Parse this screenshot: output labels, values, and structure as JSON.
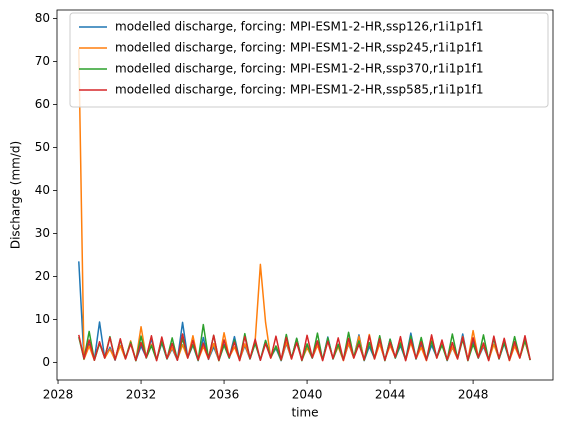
{
  "chart_data": {
    "type": "line",
    "xlabel": "time",
    "ylabel": "Discharge (mm/d)",
    "xlim": [
      2027.95,
      2051.85
    ],
    "xticks": [
      2028,
      2032,
      2036,
      2040,
      2044,
      2048
    ],
    "ylim": [
      -4.1,
      82
    ],
    "yticks": [
      0,
      10,
      20,
      30,
      40,
      50,
      60,
      70,
      80
    ],
    "legend": "upper right",
    "x": [
      2029,
      2029.25,
      2029.5,
      2029.75,
      2030,
      2030.25,
      2030.5,
      2030.75,
      2031,
      2031.25,
      2031.5,
      2031.75,
      2032,
      2032.25,
      2032.5,
      2032.75,
      2033,
      2033.25,
      2033.5,
      2033.75,
      2034,
      2034.25,
      2034.5,
      2034.75,
      2035,
      2035.25,
      2035.5,
      2035.75,
      2036,
      2036.25,
      2036.5,
      2036.75,
      2037,
      2037.25,
      2037.5,
      2037.75,
      2038,
      2038.25,
      2038.5,
      2038.75,
      2039,
      2039.25,
      2039.5,
      2039.75,
      2040,
      2040.25,
      2040.5,
      2040.75,
      2041,
      2041.25,
      2041.5,
      2041.75,
      2042,
      2042.25,
      2042.5,
      2042.75,
      2043,
      2043.25,
      2043.5,
      2043.75,
      2044,
      2044.25,
      2044.5,
      2044.75,
      2045,
      2045.25,
      2045.5,
      2045.75,
      2046,
      2046.25,
      2046.5,
      2046.75,
      2047,
      2047.25,
      2047.5,
      2047.75,
      2048,
      2048.25,
      2048.5,
      2048.75,
      2049,
      2049.25,
      2049.5,
      2049.75,
      2050,
      2050.25,
      2050.5,
      2050.75
    ],
    "series": [
      {
        "name": "modelled discharge, forcing: MPI-ESM1-2-HR,ssp126,r1i1p1f1",
        "color": "#1f77b4",
        "values": [
          23.5,
          0.8,
          4.2,
          0.6,
          9.4,
          1.0,
          3.5,
          0.5,
          5.2,
          0.9,
          4.8,
          0.4,
          3.8,
          1.2,
          5.5,
          0.6,
          4.5,
          0.8,
          3.2,
          0.5,
          9.3,
          1.1,
          4.0,
          0.4,
          5.8,
          0.7,
          3.6,
          0.5,
          4.2,
          1.0,
          6.0,
          0.6,
          3.9,
          0.8,
          4.5,
          0.5,
          5.1,
          1.2,
          3.3,
          0.4,
          4.4,
          0.9,
          5.6,
          0.5,
          3.6,
          1.0,
          4.1,
          0.6,
          5.9,
          0.8,
          3.8,
          0.5,
          4.3,
          1.1,
          6.4,
          0.4,
          3.7,
          0.9,
          4.6,
          0.5,
          5.4,
          1.0,
          3.9,
          0.6,
          6.8,
          0.8,
          4.2,
          0.5,
          4.0,
          1.2,
          5.0,
          0.4,
          3.5,
          0.9,
          6.6,
          0.5,
          4.8,
          1.0,
          3.7,
          0.6,
          5.5,
          0.8,
          4.4,
          0.5,
          3.9,
          1.1,
          5.2,
          0.6
        ]
      },
      {
        "name": "modelled discharge, forcing: MPI-ESM1-2-HR,ssp245,r1i1p1f1",
        "color": "#ff7f0e",
        "values": [
          73.0,
          0.7,
          3.8,
          0.5,
          4.6,
          1.0,
          3.1,
          0.6,
          3.9,
          0.8,
          5.0,
          0.4,
          8.3,
          1.1,
          4.2,
          0.5,
          5.6,
          0.9,
          3.5,
          0.6,
          4.1,
          1.0,
          6.2,
          0.5,
          3.7,
          0.8,
          4.4,
          0.4,
          6.9,
          1.2,
          3.6,
          0.5,
          4.3,
          0.9,
          5.1,
          22.8,
          9.3,
          1.0,
          3.8,
          0.5,
          4.7,
          0.8,
          5.5,
          0.6,
          3.4,
          1.1,
          4.0,
          0.5,
          5.0,
          0.9,
          3.7,
          0.4,
          4.5,
          1.0,
          6.1,
          0.5,
          6.5,
          0.8,
          4.3,
          0.6,
          3.9,
          1.2,
          5.3,
          0.5,
          4.6,
          0.9,
          3.5,
          0.4,
          5.8,
          1.0,
          4.7,
          0.5,
          3.6,
          0.8,
          6.0,
          0.6,
          7.4,
          1.1,
          4.1,
          0.5,
          4.2,
          0.9,
          5.4,
          0.4,
          3.8,
          1.0,
          4.9,
          0.6
        ]
      },
      {
        "name": "modelled discharge, forcing: MPI-ESM1-2-HR,ssp370,r1i1p1f1",
        "color": "#2ca02c",
        "values": [
          5.9,
          0.8,
          7.2,
          0.5,
          4.4,
          1.1,
          6.0,
          0.6,
          5.3,
          0.9,
          4.7,
          0.4,
          6.1,
          1.0,
          3.9,
          0.5,
          4.8,
          0.8,
          5.7,
          0.6,
          5.5,
          1.2,
          4.1,
          0.5,
          8.8,
          0.9,
          6.3,
          0.4,
          4.0,
          1.0,
          5.2,
          0.5,
          6.7,
          0.8,
          4.4,
          0.6,
          5.1,
          1.1,
          3.8,
          0.5,
          6.5,
          0.9,
          5.6,
          0.4,
          4.3,
          1.0,
          6.8,
          0.5,
          5.7,
          0.8,
          4.2,
          0.6,
          7.0,
          1.2,
          5.0,
          0.5,
          4.6,
          0.9,
          6.2,
          0.4,
          5.4,
          1.0,
          4.5,
          0.5,
          6.1,
          0.8,
          5.8,
          0.6,
          4.9,
          1.1,
          4.0,
          0.5,
          6.6,
          0.9,
          5.3,
          0.4,
          4.2,
          1.0,
          6.4,
          0.5,
          5.6,
          0.8,
          4.6,
          0.6,
          6.0,
          1.1,
          5.1,
          0.5
        ]
      },
      {
        "name": "modelled discharge, forcing: MPI-ESM1-2-HR,ssp585,r1i1p1f1",
        "color": "#d62728",
        "values": [
          6.4,
          0.9,
          5.2,
          0.5,
          4.8,
          1.0,
          5.8,
          0.6,
          5.5,
          0.8,
          4.3,
          0.5,
          4.6,
          1.1,
          6.2,
          0.4,
          5.9,
          0.9,
          4.4,
          0.5,
          6.6,
          1.0,
          5.1,
          0.6,
          4.5,
          0.8,
          6.3,
          0.5,
          5.2,
          1.2,
          4.7,
          0.4,
          6.0,
          0.9,
          5.4,
          0.5,
          4.4,
          1.0,
          6.1,
          0.6,
          5.8,
          0.8,
          4.6,
          0.5,
          6.3,
          1.1,
          5.0,
          0.4,
          4.9,
          0.9,
          5.7,
          0.5,
          5.6,
          1.0,
          4.2,
          0.6,
          6.2,
          0.8,
          5.5,
          0.5,
          4.7,
          1.2,
          6.0,
          0.4,
          5.3,
          0.9,
          4.8,
          0.5,
          6.4,
          1.0,
          5.2,
          0.6,
          4.6,
          0.8,
          5.9,
          0.5,
          5.7,
          1.1,
          4.5,
          0.4,
          6.1,
          0.9,
          5.6,
          0.5,
          4.8,
          1.0,
          6.2,
          0.6
        ]
      }
    ]
  }
}
